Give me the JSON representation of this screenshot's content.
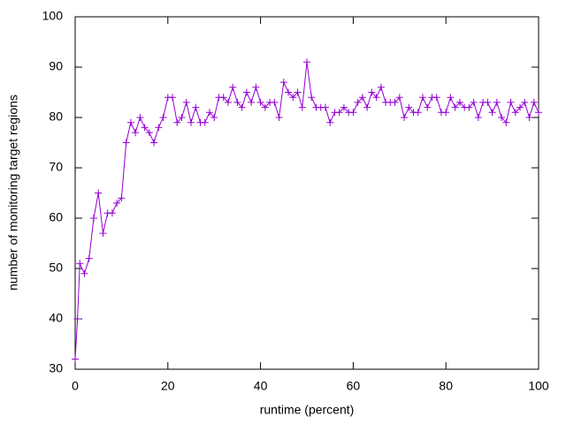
{
  "chart_data": {
    "type": "line",
    "xlabel": "runtime (percent)",
    "ylabel": "number of monitoring target regions",
    "x": [
      0,
      0.5,
      1,
      2,
      3,
      4,
      5,
      6,
      7,
      8,
      9,
      10,
      11,
      12,
      13,
      14,
      15,
      16,
      17,
      18,
      19,
      20,
      21,
      22,
      23,
      24,
      25,
      26,
      27,
      28,
      29,
      30,
      31,
      32,
      33,
      34,
      35,
      36,
      37,
      38,
      39,
      40,
      41,
      42,
      43,
      44,
      45,
      46,
      47,
      48,
      49,
      50,
      51,
      52,
      53,
      54,
      55,
      56,
      57,
      58,
      59,
      60,
      61,
      62,
      63,
      64,
      65,
      66,
      67,
      68,
      69,
      70,
      71,
      72,
      73,
      74,
      75,
      76,
      77,
      78,
      79,
      80,
      81,
      82,
      83,
      84,
      85,
      86,
      87,
      88,
      89,
      90,
      91,
      92,
      93,
      94,
      95,
      96,
      97,
      98,
      99,
      100
    ],
    "series": [
      {
        "color": "#9400d3",
        "values": [
          32,
          40,
          51,
          49,
          52,
          60,
          65,
          57,
          61,
          61,
          63,
          64,
          75,
          79,
          77,
          80,
          78,
          77,
          75,
          78,
          80,
          84,
          84,
          79,
          80,
          83,
          79,
          82,
          79,
          79,
          81,
          80,
          84,
          84,
          83,
          86,
          83,
          82,
          85,
          83,
          86,
          83,
          82,
          83,
          83,
          80,
          87,
          85,
          84,
          85,
          82,
          91,
          84,
          82,
          82,
          82,
          79,
          81,
          81,
          82,
          81,
          81,
          83,
          84,
          82,
          85,
          84,
          86,
          83,
          83,
          83,
          84,
          80,
          82,
          81,
          81,
          84,
          82,
          84,
          84,
          81,
          81,
          84,
          82,
          83,
          82,
          82,
          83,
          80,
          83,
          83,
          81,
          83,
          80,
          79,
          83,
          81,
          82,
          83,
          80,
          83,
          81
        ]
      }
    ],
    "xlim": [
      0,
      100
    ],
    "xticks": [
      0,
      20,
      40,
      60,
      80,
      100
    ],
    "ylim": [
      30,
      100
    ],
    "yticks": [
      30,
      40,
      50,
      60,
      70,
      80,
      90,
      100
    ]
  }
}
